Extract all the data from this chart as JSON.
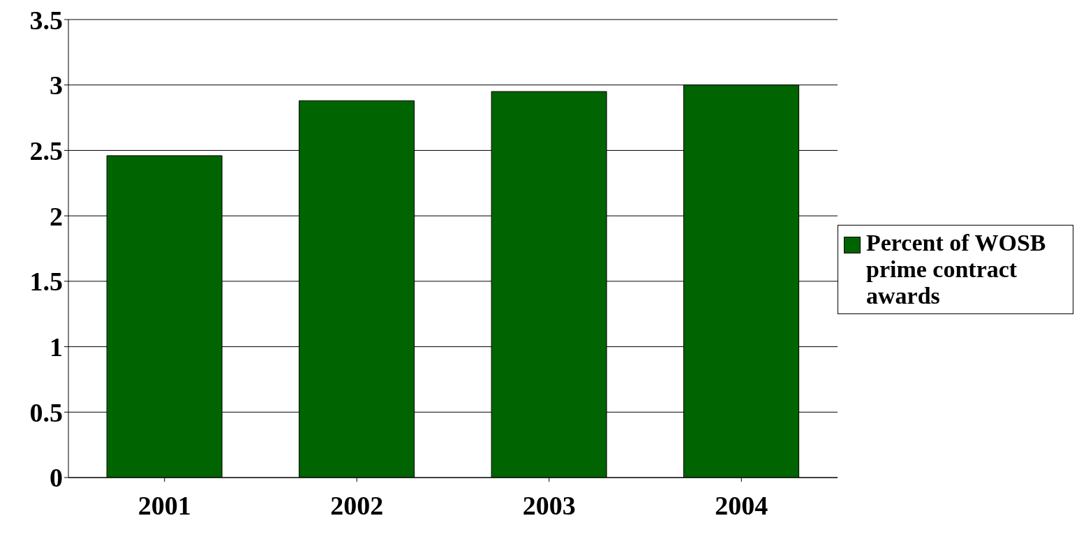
{
  "chart_data": {
    "type": "bar",
    "categories": [
      "2001",
      "2002",
      "2003",
      "2004"
    ],
    "series": [
      {
        "name": "Percent of WOSB prime contract awards",
        "color": "#006400",
        "values": [
          2.46,
          2.88,
          2.95,
          3.0
        ]
      }
    ],
    "ylim": [
      0,
      3.5
    ],
    "yticks": [
      0,
      0.5,
      1,
      1.5,
      2,
      2.5,
      3,
      3.5
    ],
    "grid": "y",
    "legend": "right"
  }
}
